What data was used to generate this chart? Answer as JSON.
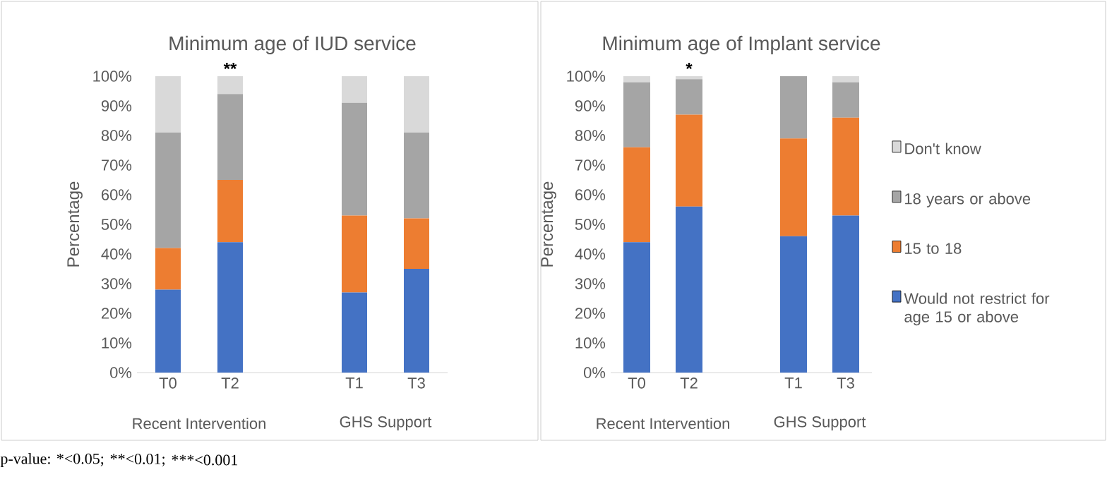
{
  "chart_data": [
    {
      "type": "bar",
      "stacked": true,
      "title": "Minimum age of IUD service",
      "ylabel": "Percentage",
      "categories": [
        "T0",
        "T2",
        null,
        "T1",
        "T3"
      ],
      "series": [
        {
          "color": "#4472c4",
          "values": [
            28,
            44,
            null,
            27,
            35
          ]
        },
        {
          "color": "#ed7d31",
          "values": [
            14,
            21,
            null,
            26,
            17
          ]
        },
        {
          "color": "#a5a5a5",
          "values": [
            39,
            29,
            null,
            38,
            29
          ]
        },
        {
          "color": "#d9d9d9",
          "values": [
            19,
            6,
            null,
            9,
            19
          ]
        }
      ],
      "ylim": [
        0,
        100
      ],
      "yticks": [
        {
          "value": 0,
          "label": "0%"
        },
        {
          "value": 10,
          "label": "10%"
        },
        {
          "value": 20,
          "label": "20%"
        },
        {
          "value": 30,
          "label": "30%"
        },
        {
          "value": 40,
          "label": "40%"
        },
        {
          "value": 50,
          "label": "50%"
        },
        {
          "value": 60,
          "label": "60%"
        },
        {
          "value": 70,
          "label": "70%"
        },
        {
          "value": 80,
          "label": "80%"
        },
        {
          "value": 90,
          "label": "90%"
        },
        {
          "value": 100,
          "label": "100%"
        }
      ],
      "legend": false,
      "annotations": [
        {
          "text": "**",
          "x": "T2",
          "y": 100
        },
        "Recent Intervention",
        "GHS Support",
        "p-value: *<0.05;",
        "**<0.01;",
        "***<0.001"
      ]
    },
    {
      "type": "bar",
      "stacked": true,
      "title": "Minimum age of Implant service",
      "ylabel": "Percentage",
      "categories": [
        "T0",
        "T2",
        null,
        "T1",
        "T3"
      ],
      "series": [
        {
          "name": "Would not restrict for age 15 or above",
          "color": "#4472c4",
          "values": [
            44,
            56,
            null,
            46,
            53
          ]
        },
        {
          "name": "15 to 18",
          "color": "#ed7d31",
          "values": [
            32,
            31,
            null,
            33,
            33
          ]
        },
        {
          "name": "18 years or above",
          "color": "#a5a5a5",
          "values": [
            22,
            12,
            null,
            21,
            12
          ]
        },
        {
          "name": "Don't know",
          "color": "#d9d9d9",
          "values": [
            2,
            1,
            null,
            0,
            2
          ]
        }
      ],
      "ylim": [
        0,
        100
      ],
      "yticks": [
        {
          "value": 0,
          "label": "0%"
        },
        {
          "value": 10,
          "label": "10%"
        },
        {
          "value": 20,
          "label": "20%"
        },
        {
          "value": 30,
          "label": "30%"
        },
        {
          "value": 40,
          "label": "40%"
        },
        {
          "value": 50,
          "label": "50%"
        },
        {
          "value": 60,
          "label": "60%"
        },
        {
          "value": 70,
          "label": "70%"
        },
        {
          "value": 80,
          "label": "80%"
        },
        {
          "value": 90,
          "label": "90%"
        },
        {
          "value": 100,
          "label": "100%"
        }
      ],
      "legend": "right",
      "annotations": [
        {
          "text": "*",
          "x": "T2",
          "y": 100
        },
        "Recent Intervention",
        "GHS Support"
      ]
    }
  ]
}
